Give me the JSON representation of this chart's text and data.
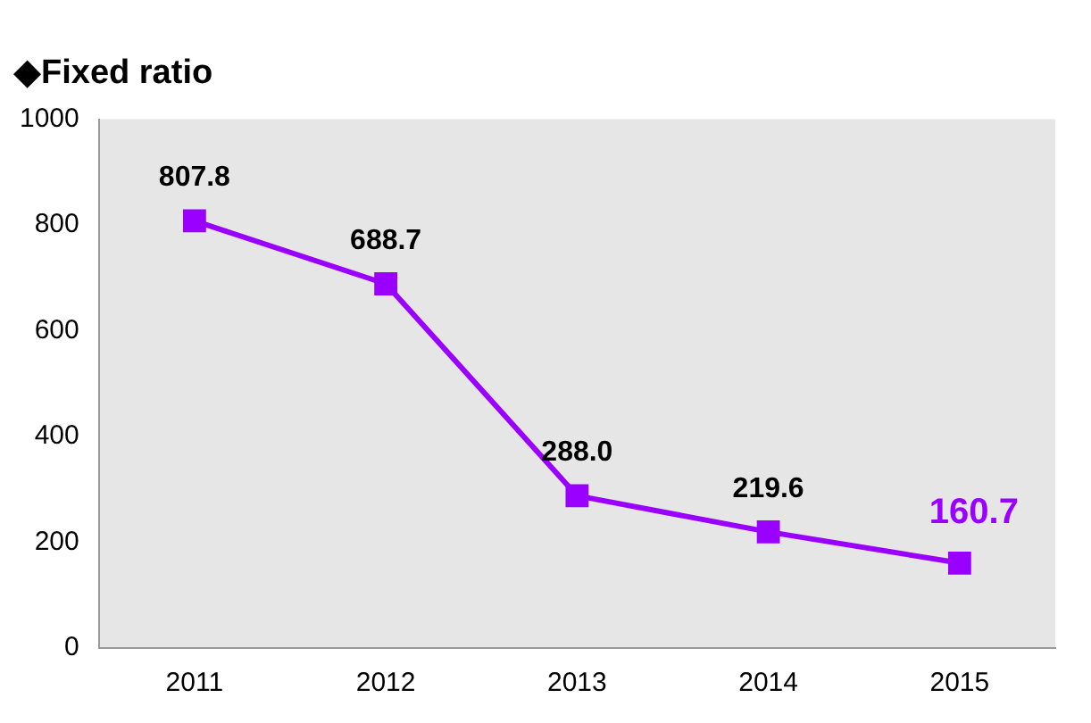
{
  "chart_data": {
    "type": "line",
    "title": "◆Fixed ratio",
    "categories": [
      "2011",
      "2012",
      "2013",
      "2014",
      "2015"
    ],
    "series": [
      {
        "color": "#9900ff",
        "values": [
          807.8,
          688.7,
          288.0,
          219.6,
          160.7
        ]
      }
    ],
    "value_labels": [
      "807.8",
      "688.7",
      "288.0",
      "219.6",
      "160.7"
    ],
    "ylim": [
      0,
      1000
    ],
    "yticks": [
      0,
      200,
      400,
      600,
      800,
      1000
    ],
    "grid": false,
    "legend": false,
    "marker": "square",
    "line_style": "solid"
  }
}
